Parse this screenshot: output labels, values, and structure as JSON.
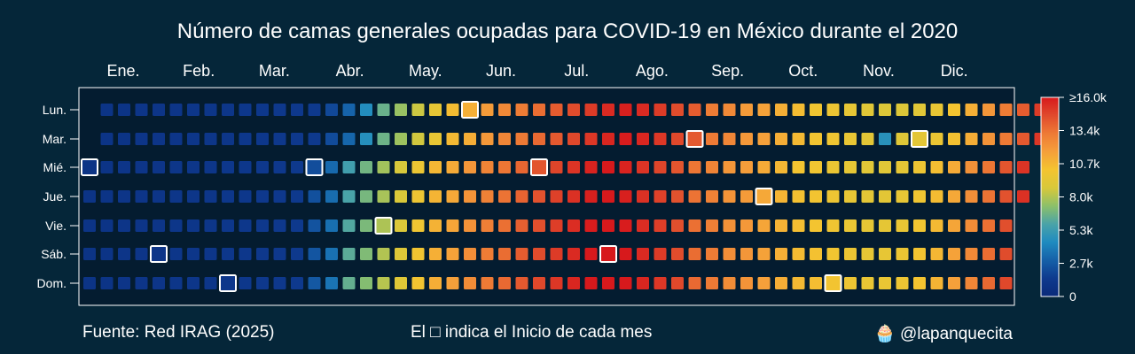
{
  "title": "Número de camas generales ocupadas para COVID-19 en México durante el 2020",
  "footer": {
    "source": "Fuente: Red IRAG (2025)",
    "note": "El □ indica el Inicio de cada mes",
    "credit": "🧁 @lapanquecita"
  },
  "colors": {
    "background": "#052639",
    "plot_background": "#041c30",
    "highlight_border": "#ffffff",
    "colorscale": [
      "#0a2a7a",
      "#0e3a8e",
      "#1560a8",
      "#1f8bc0",
      "#4aa3a8",
      "#8cc06a",
      "#d8c83a",
      "#f4c430",
      "#f59f3a",
      "#ee7a35",
      "#e04a2c",
      "#d7191c"
    ]
  },
  "chart_data": {
    "type": "heatmap",
    "year": 2020,
    "title": "Número de camas generales ocupadas para COVID-19 en México durante el 2020",
    "month_labels": [
      "Ene.",
      "Feb.",
      "Mar.",
      "Abr.",
      "May.",
      "Jun.",
      "Jul.",
      "Ago.",
      "Sep.",
      "Oct.",
      "Nov.",
      "Dic."
    ],
    "day_labels": [
      "Lun.",
      "Mar.",
      "Mié.",
      "Jue.",
      "Vie.",
      "Sáb.",
      "Dom."
    ],
    "colorbar": {
      "min": 0,
      "max": 16000,
      "tick_values": [
        0,
        2667,
        5333,
        8000,
        10667,
        13333,
        16000
      ],
      "tick_labels": [
        "0",
        "2.7k",
        "5.3k",
        "8.0k",
        "10.7k",
        "13.4k",
        "≥16.0k"
      ]
    },
    "month_start_note": "El □ indica el Inicio de cada mes",
    "weekly_values_by_weekday": [
      [
        900,
        900,
        1000,
        1000,
        1000,
        1100,
        1100,
        1100,
        1200,
        1200,
        1300,
        1300,
        1400,
        2000,
        3000,
        4500,
        6500,
        7500,
        8500,
        9500,
        10500,
        11000,
        11800,
        12500,
        13000,
        13500,
        14000,
        14500,
        15000,
        15500,
        15800,
        15500,
        15000,
        14500,
        14000,
        13000,
        12500,
        11800,
        11500,
        11000,
        10500,
        10000,
        9800,
        9500,
        9200,
        9000,
        9000,
        9200,
        9600,
        10200,
        11000,
        12000,
        13000,
        14000,
        15000
      ],
      [
        900,
        900,
        1000,
        1000,
        1000,
        1100,
        1100,
        1100,
        1200,
        1200,
        1300,
        1300,
        1400,
        2100,
        3100,
        4600,
        6600,
        7600,
        8600,
        9600,
        10600,
        11100,
        11900,
        12600,
        13100,
        13600,
        14100,
        14600,
        15100,
        15600,
        15900,
        15600,
        15100,
        14600,
        14100,
        13100,
        12600,
        11900,
        11600,
        11100,
        10600,
        10100,
        9900,
        9600,
        9300,
        4700,
        9100,
        9300,
        9700,
        10300,
        11100,
        12100,
        13100,
        14100,
        15100
      ],
      [
        900,
        900,
        1000,
        1000,
        1000,
        1100,
        1100,
        1100,
        1200,
        1200,
        1300,
        1300,
        1400,
        2200,
        3200,
        5500,
        6700,
        7700,
        8700,
        9700,
        10700,
        11200,
        12000,
        12700,
        13200,
        13700,
        14200,
        14700,
        15200,
        15700,
        16000,
        15700,
        15200,
        14700,
        14200,
        13200,
        12700,
        12000,
        11700,
        11200,
        10700,
        10200,
        10000,
        9700,
        9400,
        9200,
        9200,
        9400,
        9800,
        10400,
        11200,
        12200,
        13200,
        14200,
        15200
      ],
      [
        900,
        900,
        1000,
        1000,
        1000,
        1100,
        1100,
        1100,
        1200,
        1200,
        1300,
        1300,
        1400,
        2300,
        3300,
        5800,
        6800,
        7800,
        8800,
        9800,
        10800,
        11300,
        12100,
        12800,
        13300,
        13800,
        14300,
        14800,
        15300,
        15800,
        16000,
        15800,
        15300,
        14800,
        14300,
        13300,
        12800,
        12100,
        11800,
        11300,
        10800,
        10300,
        10100,
        9800,
        9500,
        9300,
        9300,
        9500,
        9900,
        10500,
        11300,
        12300,
        13300,
        14300,
        15300
      ],
      [
        900,
        900,
        1000,
        1000,
        1000,
        1100,
        1100,
        1100,
        1200,
        1200,
        1300,
        1300,
        1400,
        2400,
        3400,
        6000,
        6900,
        7900,
        8900,
        9900,
        10900,
        11400,
        12200,
        12900,
        13400,
        13900,
        14400,
        14900,
        15400,
        15900,
        16000,
        15900,
        15400,
        14900,
        14400,
        13400,
        12900,
        12200,
        11900,
        11400,
        10900,
        10400,
        10200,
        9900,
        9600,
        9400,
        9400,
        9600,
        10000,
        10600,
        11400,
        12400,
        13400,
        14400
      ],
      [
        900,
        900,
        1000,
        1000,
        1000,
        1100,
        1100,
        1100,
        1200,
        1200,
        1300,
        1300,
        1400,
        2500,
        3500,
        6200,
        7000,
        8000,
        9000,
        10000,
        11000,
        11500,
        12300,
        13000,
        13500,
        14000,
        14500,
        15000,
        15500,
        16000,
        16000,
        16000,
        15500,
        15000,
        14500,
        13500,
        13000,
        12300,
        12000,
        11500,
        11000,
        10500,
        10300,
        10000,
        9700,
        9500,
        9500,
        9700,
        10100,
        10700,
        11500,
        12500,
        13500,
        14500
      ],
      [
        900,
        900,
        1000,
        1000,
        1000,
        1100,
        1100,
        1100,
        1200,
        1200,
        1300,
        1300,
        1400,
        2600,
        3600,
        6400,
        7100,
        8100,
        9100,
        10100,
        11100,
        11600,
        12400,
        13100,
        13600,
        14100,
        14600,
        15100,
        15600,
        16000,
        16000,
        16000,
        15600,
        15100,
        14600,
        13600,
        13100,
        12400,
        12100,
        11600,
        11100,
        10600,
        10400,
        10100,
        9800,
        9600,
        9600,
        9800,
        10200,
        10800,
        11600,
        12600,
        13600,
        14600
      ]
    ],
    "month_start_cells": [
      {
        "week": 0,
        "weekday": 2
      },
      {
        "week": 4,
        "weekday": 5
      },
      {
        "week": 8,
        "weekday": 6
      },
      {
        "week": 13,
        "weekday": 2
      },
      {
        "week": 17,
        "weekday": 4
      },
      {
        "week": 22,
        "weekday": 0
      },
      {
        "week": 26,
        "weekday": 2
      },
      {
        "week": 30,
        "weekday": 5
      },
      {
        "week": 35,
        "weekday": 1
      },
      {
        "week": 39,
        "weekday": 3
      },
      {
        "week": 43,
        "weekday": 6
      },
      {
        "week": 48,
        "weekday": 1
      }
    ],
    "grid": false,
    "colorbar_position": "right"
  }
}
